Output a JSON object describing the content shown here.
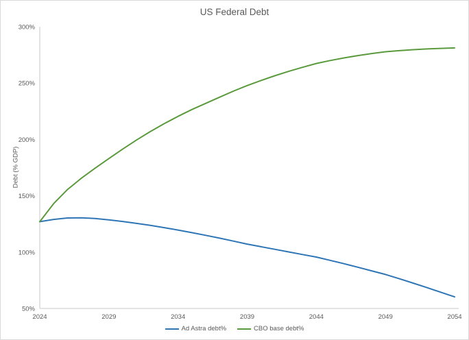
{
  "chart_data": {
    "type": "line",
    "title": "US Federal Debt",
    "xlabel": "",
    "ylabel": "Debt (% GDP)",
    "ylim": [
      50,
      300
    ],
    "x_start": 2024,
    "x_end": 2054,
    "grid": false,
    "legend_position": "bottom",
    "colors": {
      "text": "#595959",
      "axis": "#C9C9C9",
      "border": "#D9D9D9",
      "background": "#FFFFFF"
    },
    "y_ticks": [
      {
        "value": 50,
        "label": "50%"
      },
      {
        "value": 100,
        "label": "100%"
      },
      {
        "value": 150,
        "label": "150%"
      },
      {
        "value": 200,
        "label": "200%"
      },
      {
        "value": 250,
        "label": "250%"
      },
      {
        "value": 300,
        "label": "300%"
      }
    ],
    "x_ticks": [
      {
        "value": 2024,
        "label": "2024"
      },
      {
        "value": 2029,
        "label": "2029"
      },
      {
        "value": 2034,
        "label": "2034"
      },
      {
        "value": 2039,
        "label": "2039"
      },
      {
        "value": 2044,
        "label": "2044"
      },
      {
        "value": 2049,
        "label": "2049"
      },
      {
        "value": 2054,
        "label": "2054"
      }
    ],
    "years": [
      2024,
      2025,
      2026,
      2027,
      2028,
      2029,
      2030,
      2031,
      2032,
      2033,
      2034,
      2035,
      2036,
      2037,
      2038,
      2039,
      2040,
      2041,
      2042,
      2043,
      2044,
      2045,
      2046,
      2047,
      2048,
      2049,
      2050,
      2051,
      2052,
      2053,
      2054
    ],
    "series": [
      {
        "name": "Ad Astra debt%",
        "color": "#2E75B6",
        "values": [
          127.0,
          129.0,
          130.3,
          130.5,
          129.8,
          128.6,
          127.2,
          125.5,
          123.7,
          121.7,
          119.6,
          117.3,
          114.9,
          112.4,
          109.8,
          107.1,
          104.8,
          102.5,
          100.2,
          97.9,
          95.6,
          92.7,
          89.7,
          86.6,
          83.4,
          80.2,
          76.4,
          72.5,
          68.5,
          64.4,
          60.3
        ]
      },
      {
        "name": "CBO base debt%",
        "color": "#5A9A3C",
        "values": [
          127.0,
          143.0,
          155.5,
          165.5,
          174.5,
          183.0,
          191.5,
          199.5,
          207.0,
          214.0,
          220.5,
          226.5,
          232.0,
          237.5,
          242.8,
          247.8,
          252.3,
          256.5,
          260.4,
          264.0,
          267.4,
          270.0,
          272.3,
          274.4,
          276.2,
          277.8,
          278.8,
          279.6,
          280.3,
          280.8,
          281.2
        ]
      }
    ]
  }
}
